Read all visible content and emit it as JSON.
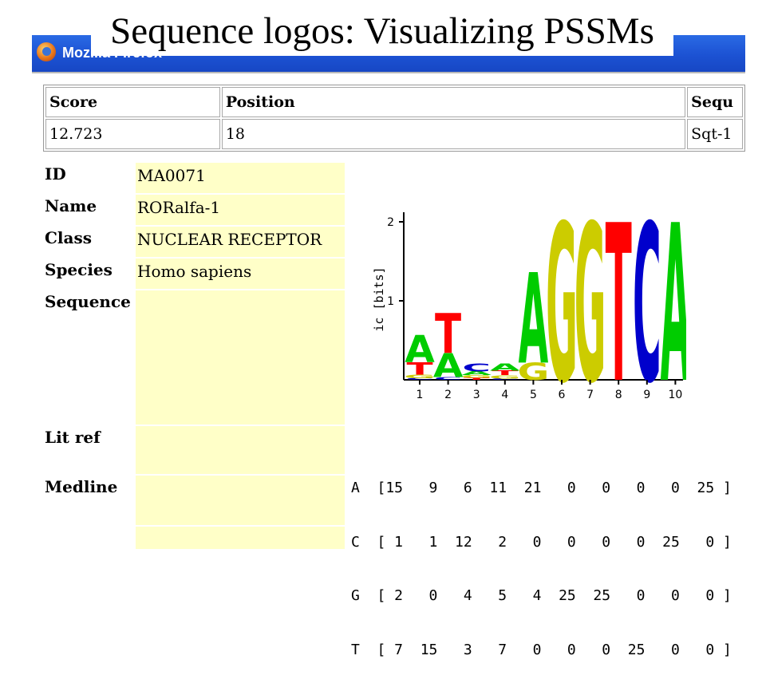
{
  "slide": {
    "title": "Sequence logos: Visualizing PSSMs"
  },
  "browser": {
    "title": "Mozilla Firefox",
    "icon": "firefox-icon"
  },
  "result_table": {
    "headers": [
      "Score",
      "Position",
      "Sequ"
    ],
    "row": [
      "12.723",
      "18",
      "Sqt-1"
    ]
  },
  "info": {
    "id": {
      "label": "ID",
      "value": "MA0071"
    },
    "name": {
      "label": "Name",
      "value": "RORalfa-1"
    },
    "class": {
      "label": "Class",
      "value": "NUCLEAR RECEPTOR"
    },
    "species": {
      "label": "Species",
      "value": "Homo sapiens"
    },
    "sequence": {
      "label": "Sequence",
      "value": ""
    },
    "litref": {
      "label": "Lit ref",
      "value": ""
    },
    "medline": {
      "label": "Medline",
      "value": ""
    }
  },
  "logo": {
    "ylabel": "ic [bits]",
    "yticks": [
      "1",
      "2"
    ],
    "positions": [
      "1",
      "2",
      "3",
      "4",
      "5",
      "6",
      "7",
      "8",
      "9",
      "10"
    ],
    "colors": {
      "A": "#00cc00",
      "C": "#0000cc",
      "G": "#cccc00",
      "T": "#ff0000"
    }
  },
  "matrix": {
    "bases": [
      "A",
      "C",
      "G",
      "T"
    ],
    "rows": {
      "A": [
        15,
        9,
        6,
        11,
        21,
        0,
        0,
        0,
        0,
        25
      ],
      "C": [
        1,
        1,
        12,
        2,
        0,
        0,
        0,
        0,
        25,
        0
      ],
      "G": [
        2,
        0,
        4,
        5,
        4,
        25,
        25,
        0,
        0,
        0
      ],
      "T": [
        7,
        15,
        3,
        7,
        0,
        0,
        0,
        25,
        0,
        0
      ]
    }
  }
}
